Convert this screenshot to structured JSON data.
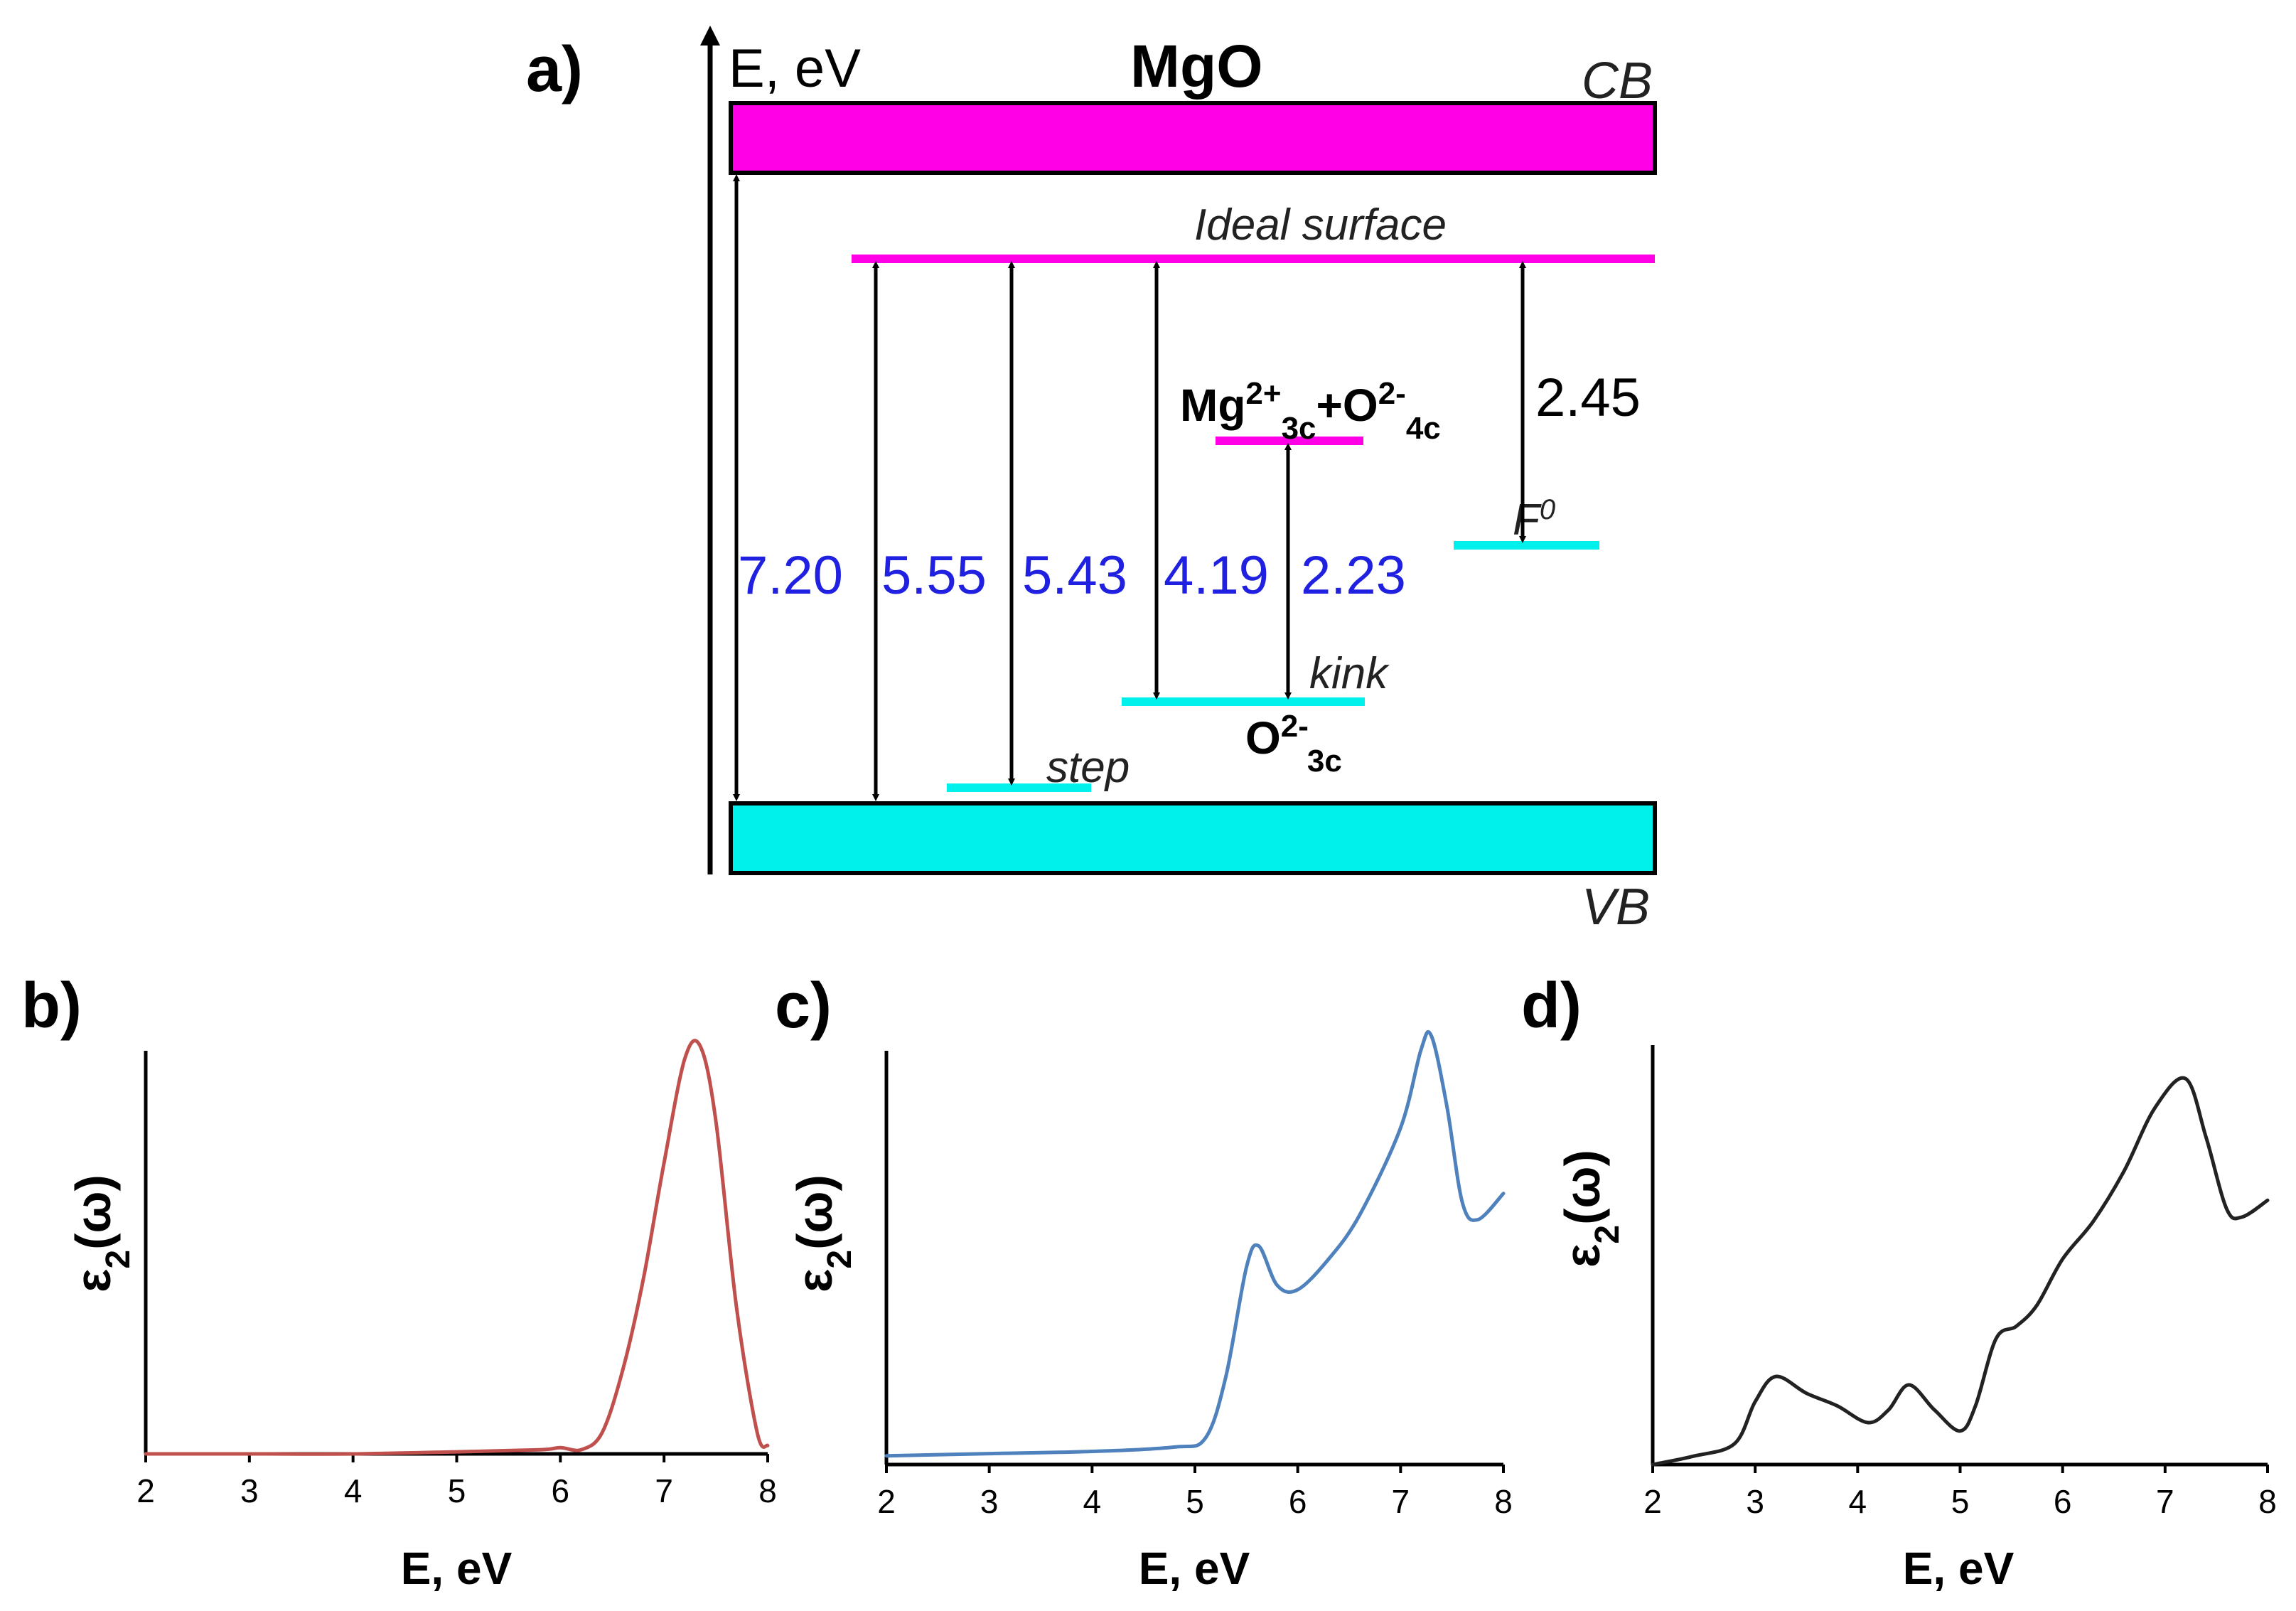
{
  "panel_a": {
    "panel_label": "a)",
    "energy_axis_label": "E, eV",
    "title": "MgO",
    "cb_label": "CB",
    "vb_label": "VB",
    "colors": {
      "cb": "#ff00e6",
      "vb": "#00f0ec",
      "ideal_surface": "#ff00e6",
      "defect_cyan": "#00f0ec",
      "value_blue": "#2020e0"
    },
    "ideal_surface_label": "Ideal surface",
    "step_label": "step",
    "kink_label": "kink",
    "o3c": {
      "main": "O",
      "sup": "2-",
      "sub": "3c"
    },
    "mg_complex": {
      "mg": "Mg",
      "mg_sup": "2+",
      "mg_sub": "3c",
      "plus": "+O",
      "o_sup": "2-",
      "o_sub": "4c"
    },
    "f0": {
      "main": "F",
      "sup": "0"
    },
    "transitions": [
      {
        "value": "7.20",
        "from": "VB",
        "to": "CB"
      },
      {
        "value": "5.55",
        "from": "VB",
        "to": "Ideal surface"
      },
      {
        "value": "5.43",
        "from": "step",
        "to": "Ideal surface"
      },
      {
        "value": "4.19",
        "from": "kink",
        "to": "Ideal surface"
      },
      {
        "value": "2.23",
        "from": "kink",
        "to": "Mg2+3c+O2-4c"
      },
      {
        "value": "2.45",
        "from": "F0",
        "to": "Ideal surface"
      }
    ]
  },
  "chart_data": [
    {
      "panel_label": "b)",
      "type": "line",
      "color": "#c0504d",
      "xlabel": "E, eV",
      "ylabel": "ε2(ω)",
      "ylabel_main": "ε",
      "ylabel_sub": "2",
      "ylabel_rest": "(ω)",
      "xlim": [
        2,
        8
      ],
      "ylim": [
        0,
        1
      ],
      "xticks": [
        "2",
        "3",
        "4",
        "5",
        "6",
        "7",
        "8"
      ],
      "x": [
        2.0,
        3.0,
        4.0,
        5.0,
        5.8,
        6.0,
        6.2,
        6.4,
        6.6,
        6.8,
        7.0,
        7.2,
        7.35,
        7.5,
        7.7,
        7.9,
        8.0
      ],
      "y": [
        0.0,
        0.0,
        0.0,
        0.005,
        0.01,
        0.015,
        0.01,
        0.05,
        0.2,
        0.42,
        0.7,
        0.95,
        0.98,
        0.8,
        0.35,
        0.05,
        0.02
      ]
    },
    {
      "panel_label": "c)",
      "type": "line",
      "color": "#4f81bd",
      "xlabel": "E, eV",
      "ylabel": "ε2(ω)",
      "ylabel_main": "ε",
      "ylabel_sub": "2",
      "ylabel_rest": "(ω)",
      "xlim": [
        2,
        8
      ],
      "ylim": [
        0,
        1
      ],
      "xticks": [
        "2",
        "3",
        "4",
        "5",
        "6",
        "7",
        "8"
      ],
      "x": [
        2.0,
        3.0,
        4.0,
        4.8,
        5.1,
        5.3,
        5.5,
        5.62,
        5.8,
        6.0,
        6.3,
        6.6,
        7.0,
        7.2,
        7.3,
        7.45,
        7.6,
        7.75,
        8.0
      ],
      "y": [
        0.02,
        0.025,
        0.03,
        0.04,
        0.06,
        0.2,
        0.45,
        0.5,
        0.41,
        0.4,
        0.47,
        0.57,
        0.77,
        0.95,
        0.98,
        0.82,
        0.6,
        0.56,
        0.62
      ]
    },
    {
      "panel_label": "d)",
      "type": "line",
      "color": "#222222",
      "xlabel": "E, eV",
      "ylabel": "ε2(ω)",
      "ylabel_main": "ε",
      "ylabel_sub": "2",
      "ylabel_rest": "(ω)",
      "xlim": [
        2,
        8
      ],
      "ylim": [
        0,
        1
      ],
      "xticks": [
        "2",
        "3",
        "4",
        "5",
        "6",
        "7",
        "8"
      ],
      "x": [
        2.0,
        2.4,
        2.8,
        3.0,
        3.2,
        3.5,
        3.8,
        4.1,
        4.3,
        4.5,
        4.75,
        5.0,
        5.15,
        5.35,
        5.55,
        5.75,
        6.0,
        6.3,
        6.6,
        6.9,
        7.2,
        7.4,
        7.6,
        7.75,
        8.0
      ],
      "y": [
        0.0,
        0.02,
        0.05,
        0.15,
        0.21,
        0.17,
        0.14,
        0.1,
        0.13,
        0.19,
        0.13,
        0.08,
        0.14,
        0.3,
        0.33,
        0.38,
        0.49,
        0.58,
        0.7,
        0.85,
        0.92,
        0.78,
        0.61,
        0.59,
        0.63
      ]
    }
  ]
}
